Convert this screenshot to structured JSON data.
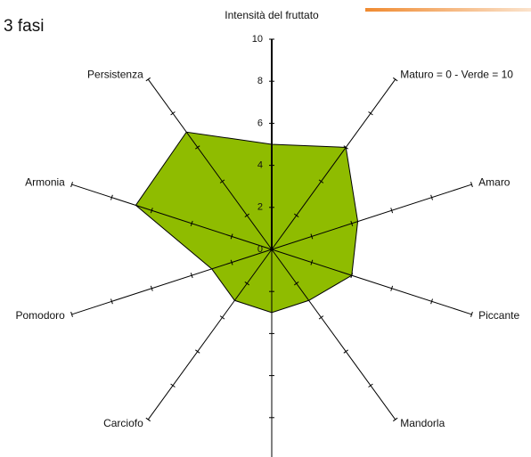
{
  "chart_data": {
    "type": "radar",
    "title": "3 fasi",
    "categories": [
      "Intensità del fruttato",
      "Maturo = 0 - Verde = 10",
      "Amaro",
      "Piccante",
      "Mandorla",
      null,
      "Carciofo",
      "Pomodoro",
      "Armonia",
      "Persistenza"
    ],
    "values": [
      5,
      6,
      4.3,
      4,
      3,
      3,
      3,
      3,
      6.8,
      6.9
    ],
    "color": "#8fbc00",
    "rlim": [
      0,
      10
    ],
    "rticks": [
      0,
      2,
      4,
      6,
      8,
      10
    ]
  }
}
